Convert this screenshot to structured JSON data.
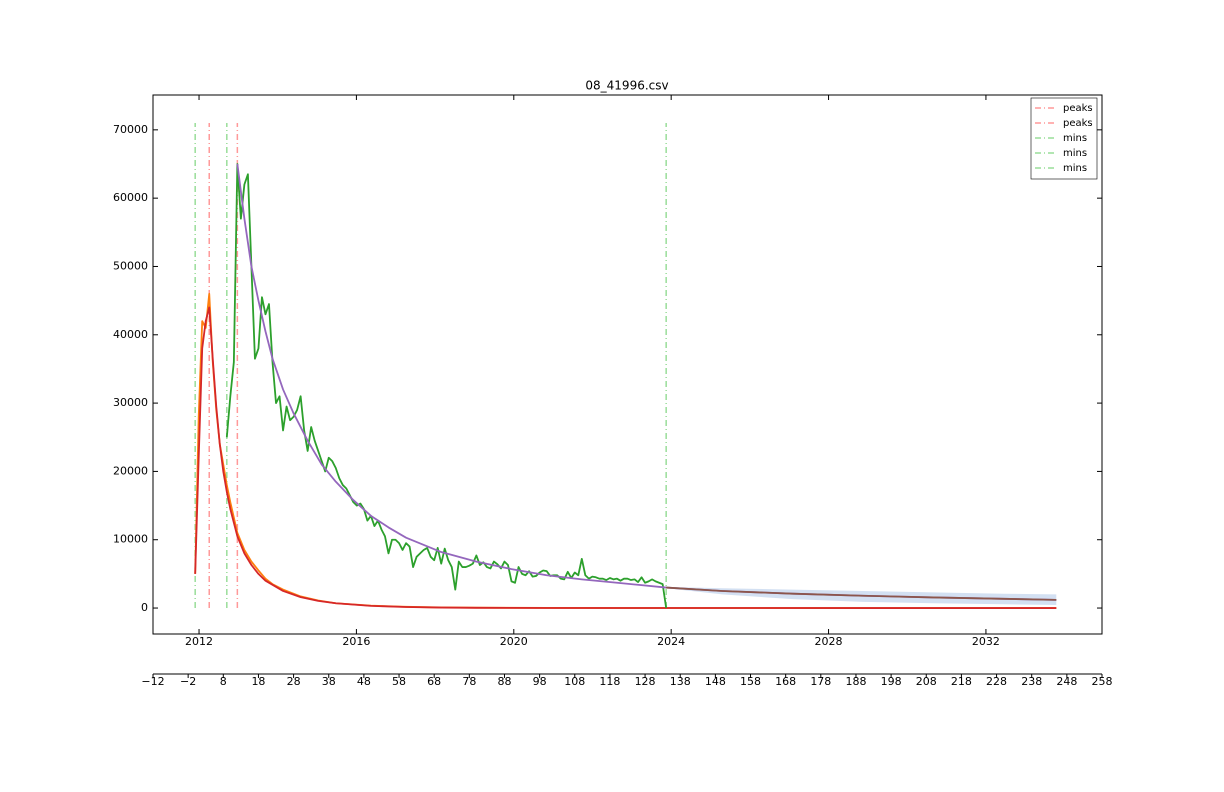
{
  "chart_data": {
    "type": "line",
    "title": "08_41996.csv",
    "ylim": [
      -3800,
      75100
    ],
    "yticks": [
      0,
      10000,
      20000,
      30000,
      40000,
      50000,
      60000,
      70000
    ],
    "xlim": [
      -12,
      258
    ],
    "xticks": [
      {
        "value": -12,
        "label": "−12"
      },
      {
        "value": -2,
        "label": "−2"
      },
      8,
      18,
      28,
      38,
      48,
      58,
      68,
      78,
      88,
      98,
      108,
      118,
      128,
      138,
      148,
      158,
      168,
      178,
      188,
      198,
      208,
      218,
      228,
      238,
      248,
      258
    ],
    "x2lim": [
      2010.83,
      2034.95
    ],
    "x2ticks": [
      2012,
      2016,
      2020,
      2024,
      2028,
      2032
    ],
    "series": [
      {
        "color": "#ff7f0e",
        "x": [
          0,
          1,
          2,
          3,
          4,
          5,
          6,
          7,
          8,
          9,
          10,
          12,
          14,
          16,
          18,
          20,
          22,
          25,
          30,
          35,
          40,
          50,
          60,
          70,
          80,
          100,
          120,
          140,
          160,
          200,
          245
        ],
        "values": [
          5000,
          28000,
          42000,
          41000,
          46000,
          36000,
          29000,
          24000,
          21000,
          18000,
          15500,
          11000,
          8500,
          6800,
          5500,
          4300,
          3500,
          2700,
          1700,
          1100,
          700,
          350,
          180,
          90,
          50,
          20,
          8,
          3,
          1,
          0,
          0
        ]
      },
      {
        "color": "#d62728",
        "x": [
          0,
          1,
          2,
          3,
          4,
          5,
          6,
          7,
          8,
          9,
          10,
          12,
          14,
          16,
          18,
          20,
          25,
          30,
          35,
          40,
          50,
          60,
          70,
          80,
          100,
          134,
          245
        ],
        "values": [
          5000,
          22000,
          38000,
          42000,
          44000,
          36500,
          29500,
          24000,
          20000,
          17000,
          14500,
          10500,
          8000,
          6300,
          5000,
          4000,
          2500,
          1600,
          1050,
          700,
          320,
          150,
          70,
          35,
          8,
          1,
          0
        ]
      },
      {
        "color": "#2ca02c",
        "x": [
          9,
          10,
          11,
          12,
          13,
          14,
          15,
          16,
          17,
          18,
          19,
          20,
          21,
          22,
          23,
          24,
          25,
          26,
          27,
          28,
          29,
          30,
          31,
          32,
          33,
          34,
          35,
          36,
          37,
          38,
          39,
          40,
          41,
          42,
          43,
          44,
          45,
          46,
          47,
          48,
          49,
          50,
          51,
          52,
          53,
          54,
          55,
          56,
          57,
          58,
          59,
          60,
          61,
          62,
          63,
          64,
          65,
          66,
          67,
          68,
          69,
          70,
          71,
          72,
          73,
          74,
          75,
          76,
          77,
          78,
          79,
          80,
          81,
          82,
          83,
          84,
          85,
          86,
          87,
          88,
          89,
          90,
          91,
          92,
          93,
          94,
          95,
          96,
          97,
          98,
          99,
          100,
          101,
          102,
          103,
          104,
          105,
          106,
          107,
          108,
          109,
          110,
          111,
          112,
          113,
          114,
          115,
          116,
          117,
          118,
          119,
          120,
          121,
          122,
          123,
          124,
          125,
          126,
          127,
          128,
          129,
          130,
          131,
          132,
          133,
          134
        ],
        "values": [
          25000,
          31000,
          36000,
          65000,
          57000,
          62000,
          63500,
          50000,
          36500,
          38000,
          45500,
          43000,
          44500,
          36000,
          30000,
          31000,
          26000,
          29500,
          27500,
          28000,
          29000,
          31000,
          26000,
          23000,
          26500,
          24500,
          23000,
          21500,
          20000,
          22000,
          21500,
          20500,
          19000,
          18000,
          17500,
          16500,
          15500,
          15000,
          15300,
          14500,
          12800,
          13500,
          12000,
          12800,
          11500,
          10500,
          8000,
          10000,
          10000,
          9500,
          8500,
          9500,
          9000,
          6000,
          7500,
          8000,
          8500,
          8800,
          7500,
          7000,
          8800,
          6500,
          8700,
          7000,
          6000,
          2700,
          6800,
          6000,
          6000,
          6200,
          6500,
          7700,
          6300,
          6700,
          6000,
          5800,
          6800,
          6400,
          5800,
          6800,
          6300,
          3900,
          3700,
          6000,
          5000,
          4800,
          5400,
          4600,
          4700,
          5200,
          5500,
          5400,
          4700,
          4800,
          4800,
          4300,
          4200,
          5300,
          4400,
          5200,
          4800,
          7200,
          4800,
          4300,
          4600,
          4500,
          4300,
          4300,
          4100,
          4400,
          4200,
          4300,
          4000,
          4300,
          4300,
          4100,
          4200,
          3800,
          4500,
          3700,
          3900,
          4200,
          3900,
          3700,
          3500,
          0
        ]
      },
      {
        "color": "#9467bd",
        "x": [
          12,
          14,
          16,
          18,
          20,
          22,
          25,
          28,
          32,
          36,
          40,
          45,
          50,
          55,
          60,
          70,
          80,
          90,
          100,
          110,
          120,
          134,
          150,
          170,
          190,
          210,
          230,
          245
        ],
        "values": [
          65000,
          57000,
          50000,
          45000,
          40500,
          36500,
          32000,
          28500,
          24500,
          21000,
          18500,
          15800,
          13500,
          11800,
          10300,
          8200,
          6800,
          5700,
          4800,
          4200,
          3700,
          3000,
          2500,
          2100,
          1800,
          1550,
          1350,
          1200
        ]
      },
      {
        "color": "#8c564b",
        "x": [
          134,
          150,
          170,
          190,
          210,
          230,
          245
        ],
        "values": [
          3000,
          2500,
          2100,
          1800,
          1550,
          1350,
          1200
        ]
      }
    ],
    "band": {
      "color": "#aec7e8",
      "x": [
        134,
        150,
        170,
        190,
        210,
        230,
        245
      ],
      "lower": [
        2900,
        2000,
        1300,
        900,
        700,
        550,
        450
      ],
      "upper": [
        3100,
        2900,
        2700,
        2500,
        2300,
        2100,
        2000
      ]
    },
    "vlines": [
      {
        "name": "peaks",
        "color": "#ff9999",
        "x": 4,
        "y": [
          0,
          71000
        ]
      },
      {
        "name": "peaks",
        "color": "#ff9999",
        "x": 12,
        "y": [
          0,
          71000
        ]
      },
      {
        "name": "mins",
        "color": "#99dd99",
        "x": 0,
        "y": [
          0,
          71000
        ]
      },
      {
        "name": "mins",
        "color": "#99dd99",
        "x": 9,
        "y": [
          0,
          71000
        ]
      },
      {
        "name": "mins",
        "color": "#99dd99",
        "x": 134,
        "y": [
          0,
          71000
        ]
      }
    ],
    "legend": "upper right"
  }
}
